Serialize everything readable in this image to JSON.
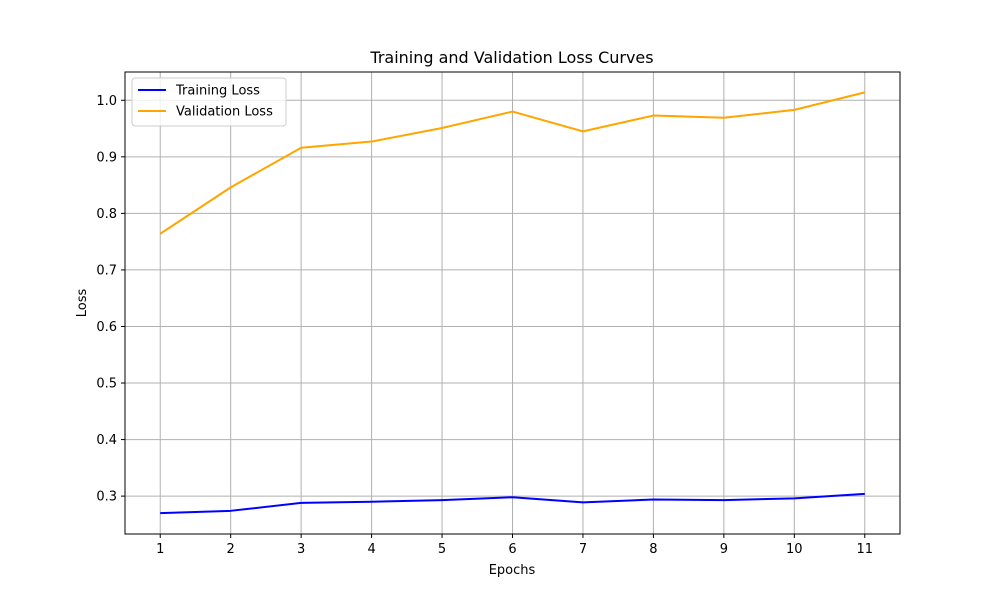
{
  "chart_data": {
    "type": "line",
    "title": "Training and Validation Loss Curves",
    "xlabel": "Epochs",
    "ylabel": "Loss",
    "x": [
      1,
      2,
      3,
      4,
      5,
      6,
      7,
      8,
      9,
      10,
      11
    ],
    "xlim": [
      0.5,
      11.5
    ],
    "ylim": [
      0.233,
      1.05
    ],
    "xticks": [
      "1",
      "2",
      "3",
      "4",
      "5",
      "6",
      "7",
      "8",
      "9",
      "10",
      "11"
    ],
    "yticks": [
      "0.3",
      "0.4",
      "0.5",
      "0.6",
      "0.7",
      "0.8",
      "0.9",
      "1.0"
    ],
    "grid": true,
    "legend_position": "top-left",
    "series": [
      {
        "name": "Training Loss",
        "color": "#0000ff",
        "values": [
          0.27,
          0.274,
          0.288,
          0.29,
          0.293,
          0.298,
          0.289,
          0.294,
          0.293,
          0.296,
          0.304
        ]
      },
      {
        "name": "Validation Loss",
        "color": "#ffa500",
        "values": [
          0.764,
          0.846,
          0.916,
          0.927,
          0.951,
          0.98,
          0.945,
          0.973,
          0.969,
          0.983,
          1.014
        ]
      }
    ]
  }
}
